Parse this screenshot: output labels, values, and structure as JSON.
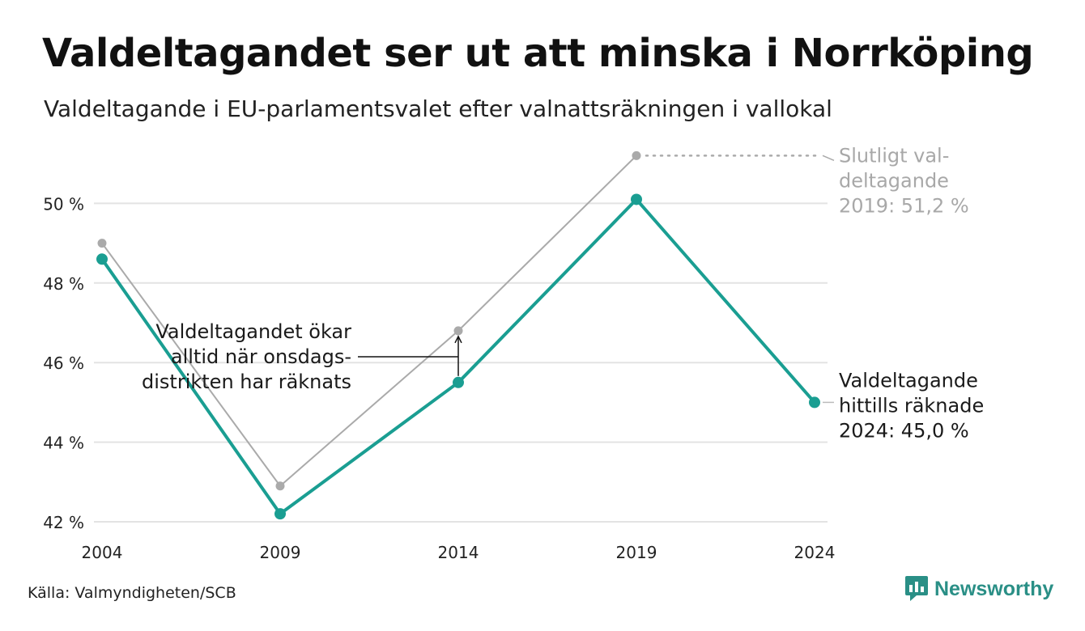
{
  "header": {
    "title": "Valdeltagandet ser ut att minska i Norrköping",
    "subtitle": "Valdeltagande i EU-parlamentsvalet efter valnattsräkningen i vallokal"
  },
  "footer": {
    "source": "Källa: Valmyndigheten/SCB",
    "brand": "Newsworthy"
  },
  "colors": {
    "main_series": "#1a9e92",
    "final_series": "#aaaaaa",
    "grid": "#e3e3e3",
    "brand": "#2a8f86"
  },
  "chart_data": {
    "type": "line",
    "title": "Valdeltagandet ser ut att minska i Norrköping",
    "subtitle": "Valdeltagande i EU-parlamentsvalet efter valnattsräkningen i vallokal",
    "x": [
      "2004",
      "2009",
      "2014",
      "2019",
      "2024"
    ],
    "ylim": [
      42,
      50
    ],
    "yticks": [
      42,
      44,
      46,
      48,
      50
    ],
    "ytick_labels": [
      "42 %",
      "44 %",
      "46 %",
      "48 %",
      "50 %"
    ],
    "grid": true,
    "series": [
      {
        "key": "election_night",
        "values": [
          48.6,
          42.2,
          45.5,
          50.1,
          45.0
        ],
        "color": "#1a9e92"
      },
      {
        "key": "final",
        "values": [
          49.0,
          42.9,
          46.8,
          51.2,
          null
        ],
        "color": "#aaaaaa"
      }
    ],
    "annotations": {
      "final_2019": [
        "Slutligt val-",
        "deltagande",
        "2019: 51,2 %"
      ],
      "current_2024": [
        "Valdeltagande",
        "hittills räknade",
        "2024: 45,0 %"
      ],
      "wednesday": [
        "Valdeltagandet ökar",
        "alltid när onsdags-",
        "distrikten har räknats"
      ]
    }
  }
}
